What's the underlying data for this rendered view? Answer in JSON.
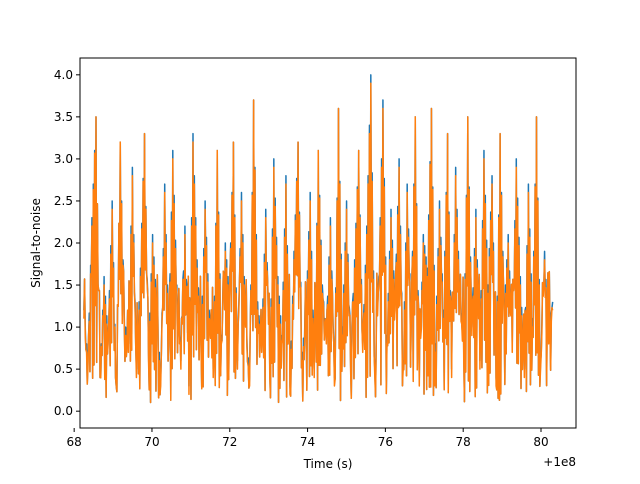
{
  "chart_data": {
    "type": "line",
    "title": "",
    "xlabel": "Time (s)",
    "ylabel": "Signal-to-noise",
    "x_offset_label": "+1e8",
    "xlim": [
      68.15,
      80.9
    ],
    "ylim": [
      -0.2,
      4.2
    ],
    "grid": false,
    "x_ticks": [
      68,
      70,
      72,
      74,
      76,
      78,
      80
    ],
    "x_tick_labels": [
      "68",
      "70",
      "72",
      "74",
      "76",
      "78",
      "80"
    ],
    "y_ticks": [
      0.0,
      0.5,
      1.0,
      1.5,
      2.0,
      2.5,
      3.0,
      3.5,
      4.0
    ],
    "y_tick_labels": [
      "0.0",
      "0.5",
      "1.0",
      "1.5",
      "2.0",
      "2.5",
      "3.0",
      "3.5",
      "4.0"
    ],
    "series": [
      {
        "color": "#1f77b4",
        "x_start": 68.25,
        "x_end": 80.3,
        "y_min_approx": 0.0,
        "y_max_approx": 4.0,
        "values": [
          1.2,
          0.6,
          2.3,
          3.5,
          0.4,
          1.6,
          0.9,
          2.5,
          0.3,
          3.2,
          1.1,
          0.8,
          2.9,
          0.5,
          1.7,
          3.3,
          0.7,
          2.1,
          1.3,
          0.4,
          2.7,
          0.9,
          3.1,
          1.5,
          0.6,
          2.2,
          0.3,
          3.3,
          1.8,
          0.8,
          2.5,
          1.2,
          0.5,
          3.1,
          0.9,
          2.0,
          1.4,
          3.2,
          0.6,
          2.6,
          1.1,
          0.4,
          3.7,
          1.3,
          0.8,
          2.4,
          0.5,
          3.0,
          1.6,
          0.9,
          2.8,
          0.3,
          1.9,
          3.2,
          0.7,
          1.2,
          2.6,
          0.5,
          3.1,
          1.5,
          0.9,
          2.3,
          0.4,
          3.6,
          1.0,
          2.5,
          0.6,
          1.8,
          3.1,
          0.8,
          2.2,
          4.0,
          0.5,
          1.6,
          3.7,
          0.9,
          2.4,
          1.3,
          3.0,
          0.6,
          2.7,
          1.1,
          3.5,
          0.4,
          2.1,
          1.7,
          3.6,
          0.8,
          2.5,
          1.2,
          3.3,
          0.5,
          2.9,
          1.4,
          0.7,
          3.5,
          1.0,
          2.4,
          0.6,
          3.1,
          1.5,
          2.8,
          0.4,
          3.3,
          1.2,
          2.1,
          0.8,
          3.0,
          1.6,
          0.5,
          2.7,
          1.1,
          3.5,
          0.6,
          1.9,
          0.9,
          1.3
        ]
      },
      {
        "color": "#ff7f0e",
        "x_start": 68.25,
        "x_end": 80.3,
        "y_min_approx": 0.0,
        "y_max_approx": 3.9,
        "values": [
          1.1,
          0.5,
          2.2,
          3.5,
          0.4,
          1.5,
          0.8,
          2.4,
          0.3,
          3.2,
          1.0,
          0.7,
          2.8,
          0.4,
          1.6,
          3.3,
          0.6,
          2.0,
          1.2,
          0.3,
          2.6,
          0.8,
          3.0,
          1.4,
          0.5,
          2.1,
          0.2,
          3.2,
          1.7,
          0.7,
          2.4,
          1.1,
          0.4,
          3.1,
          0.8,
          1.9,
          1.3,
          3.2,
          0.5,
          2.5,
          1.0,
          0.3,
          3.7,
          1.2,
          0.7,
          2.3,
          0.4,
          2.9,
          1.5,
          0.8,
          2.7,
          0.2,
          1.8,
          3.2,
          0.6,
          1.1,
          2.5,
          0.4,
          3.1,
          1.4,
          0.8,
          2.2,
          0.3,
          3.6,
          0.9,
          2.4,
          0.5,
          1.7,
          3.1,
          0.7,
          2.1,
          3.9,
          0.4,
          1.5,
          3.6,
          0.8,
          2.3,
          1.2,
          2.9,
          0.5,
          2.6,
          1.0,
          3.5,
          0.3,
          2.0,
          1.6,
          3.6,
          0.7,
          2.4,
          1.1,
          3.3,
          0.4,
          2.8,
          1.3,
          0.6,
          3.5,
          0.9,
          2.3,
          0.5,
          3.0,
          1.4,
          2.7,
          0.3,
          3.3,
          1.1,
          2.0,
          0.7,
          2.9,
          1.5,
          0.4,
          2.6,
          1.0,
          3.5,
          0.5,
          1.8,
          0.8,
          1.2
        ]
      }
    ]
  }
}
